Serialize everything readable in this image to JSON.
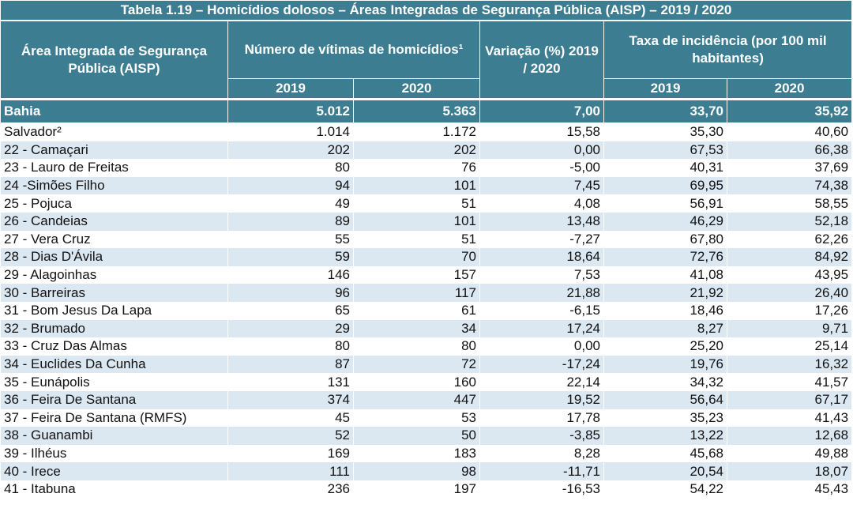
{
  "table": {
    "title": "Tabela 1.19 – Homicídios dolosos – Áreas Integradas de Segurança Pública (AISP) – 2019 / 2020",
    "headers": {
      "area": "Área Integrada de Segurança Pública (AISP)",
      "victims": "Número de vítimas de homicídios¹",
      "variation": "Variação (%) 2019 / 2020",
      "rate": "Taxa de incidência (por 100 mil habitantes)",
      "year_a": "2019",
      "year_b": "2020"
    },
    "total": {
      "name": "Bahia",
      "v2019": "5.012",
      "v2020": "5.363",
      "var": "7,00",
      "t2019": "33,70",
      "t2020": "35,92"
    },
    "rows": [
      {
        "name": "Salvador²",
        "v2019": "1.014",
        "v2020": "1.172",
        "var": "15,58",
        "t2019": "35,30",
        "t2020": "40,60"
      },
      {
        "name": "22 - Camaçari",
        "v2019": "202",
        "v2020": "202",
        "var": "0,00",
        "t2019": "67,53",
        "t2020": "66,38"
      },
      {
        "name": "23 - Lauro de Freitas",
        "v2019": "80",
        "v2020": "76",
        "var": "-5,00",
        "t2019": "40,31",
        "t2020": "37,69"
      },
      {
        "name": "24 -Simões Filho",
        "v2019": "94",
        "v2020": "101",
        "var": "7,45",
        "t2019": "69,95",
        "t2020": "74,38"
      },
      {
        "name": "25 - Pojuca",
        "v2019": "49",
        "v2020": "51",
        "var": "4,08",
        "t2019": "56,91",
        "t2020": "58,55"
      },
      {
        "name": "26  - Candeias",
        "v2019": "89",
        "v2020": "101",
        "var": "13,48",
        "t2019": "46,29",
        "t2020": "52,18"
      },
      {
        "name": "27 - Vera Cruz",
        "v2019": "55",
        "v2020": "51",
        "var": "-7,27",
        "t2019": "67,80",
        "t2020": "62,26"
      },
      {
        "name": "28 - Dias D'Ávila",
        "v2019": "59",
        "v2020": "70",
        "var": "18,64",
        "t2019": "72,76",
        "t2020": "84,92"
      },
      {
        "name": "29 - Alagoinhas",
        "v2019": "146",
        "v2020": "157",
        "var": "7,53",
        "t2019": "41,08",
        "t2020": "43,95"
      },
      {
        "name": "30 - Barreiras",
        "v2019": "96",
        "v2020": "117",
        "var": "21,88",
        "t2019": "21,92",
        "t2020": "26,40"
      },
      {
        "name": "31 - Bom Jesus Da Lapa",
        "v2019": "65",
        "v2020": "61",
        "var": "-6,15",
        "t2019": "18,46",
        "t2020": "17,26"
      },
      {
        "name": "32 - Brumado",
        "v2019": "29",
        "v2020": "34",
        "var": "17,24",
        "t2019": "8,27",
        "t2020": "9,71"
      },
      {
        "name": "33 - Cruz Das Almas",
        "v2019": "80",
        "v2020": "80",
        "var": "0,00",
        "t2019": "25,20",
        "t2020": "25,14"
      },
      {
        "name": "34 - Euclides Da Cunha",
        "v2019": "87",
        "v2020": "72",
        "var": "-17,24",
        "t2019": "19,76",
        "t2020": "16,32"
      },
      {
        "name": "35 - Eunápolis",
        "v2019": "131",
        "v2020": "160",
        "var": "22,14",
        "t2019": "34,32",
        "t2020": "41,57"
      },
      {
        "name": "36 - Feira De Santana",
        "v2019": "374",
        "v2020": "447",
        "var": "19,52",
        "t2019": "56,64",
        "t2020": "67,17"
      },
      {
        "name": "37 - Feira De Santana  (RMFS)",
        "v2019": "45",
        "v2020": "53",
        "var": "17,78",
        "t2019": "35,23",
        "t2020": "41,43"
      },
      {
        "name": "38 - Guanambi",
        "v2019": "52",
        "v2020": "50",
        "var": "-3,85",
        "t2019": "13,22",
        "t2020": "12,68"
      },
      {
        "name": "39 - Ilhéus",
        "v2019": "169",
        "v2020": "183",
        "var": "8,28",
        "t2019": "45,68",
        "t2020": "49,88"
      },
      {
        "name": "40 - Irece",
        "v2019": "111",
        "v2020": "98",
        "var": "-11,71",
        "t2019": "20,54",
        "t2020": "18,07"
      },
      {
        "name": "41 - Itabuna",
        "v2019": "236",
        "v2020": "197",
        "var": "-16,53",
        "t2019": "54,22",
        "t2020": "45,43"
      }
    ]
  },
  "colors": {
    "header_bg": "#3d7d91",
    "alt_row_bg": "#dbe7f1"
  }
}
